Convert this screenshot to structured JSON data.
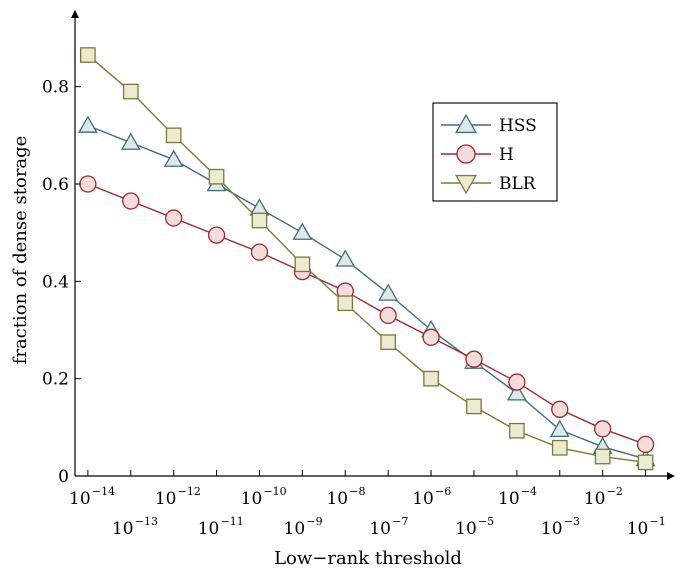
{
  "chart_data": {
    "type": "line",
    "xlabel": "Low−rank threshold",
    "ylabel": "fraction of dense storage",
    "xscale": "log",
    "xlim": [
      "1e-14",
      "1e-1"
    ],
    "ylim": [
      0,
      0.9
    ],
    "grid": false,
    "legend_position": "top-right",
    "x_ticks_upper": [
      {
        "base": "10",
        "exp": "−14"
      },
      {
        "base": "10",
        "exp": "−12"
      },
      {
        "base": "10",
        "exp": "−10"
      },
      {
        "base": "10",
        "exp": "−8"
      },
      {
        "base": "10",
        "exp": "−6"
      },
      {
        "base": "10",
        "exp": "−4"
      },
      {
        "base": "10",
        "exp": "−2"
      }
    ],
    "x_ticks_lower": [
      {
        "base": "10",
        "exp": "−13"
      },
      {
        "base": "10",
        "exp": "−11"
      },
      {
        "base": "10",
        "exp": "−9"
      },
      {
        "base": "10",
        "exp": "−7"
      },
      {
        "base": "10",
        "exp": "−5"
      },
      {
        "base": "10",
        "exp": "−3"
      },
      {
        "base": "10",
        "exp": "−1"
      }
    ],
    "y_ticks": [
      "0",
      "0.2",
      "0.4",
      "0.6",
      "0.8"
    ],
    "y_tick_values": [
      0,
      0.2,
      0.4,
      0.6,
      0.8
    ],
    "x": [
      -14,
      -13,
      -12,
      -11,
      -10,
      -9,
      -8,
      -7,
      -6,
      -5,
      -4,
      -3,
      -2,
      -1
    ],
    "series": [
      {
        "name": "HSS",
        "marker": "triangle-up",
        "color": "#3e6f7a",
        "fill": "#dce8ea",
        "values": [
          0.72,
          0.685,
          0.65,
          0.6,
          0.55,
          0.5,
          0.445,
          0.375,
          0.3,
          0.235,
          0.17,
          0.095,
          0.06,
          0.035
        ]
      },
      {
        "name": "H",
        "marker": "circle",
        "color": "#9e2a2b",
        "fill": "#f3dcdc",
        "values": [
          0.6,
          0.565,
          0.53,
          0.495,
          0.46,
          0.42,
          0.38,
          0.33,
          0.285,
          0.24,
          0.193,
          0.137,
          0.097,
          0.065
        ]
      },
      {
        "name": "BLR",
        "marker": "square",
        "legend_marker": "triangle-down",
        "color": "#7b7a3a",
        "fill": "#eceacf",
        "values": [
          0.865,
          0.79,
          0.7,
          0.615,
          0.525,
          0.435,
          0.355,
          0.275,
          0.2,
          0.143,
          0.093,
          0.058,
          0.04,
          0.028
        ]
      }
    ]
  }
}
